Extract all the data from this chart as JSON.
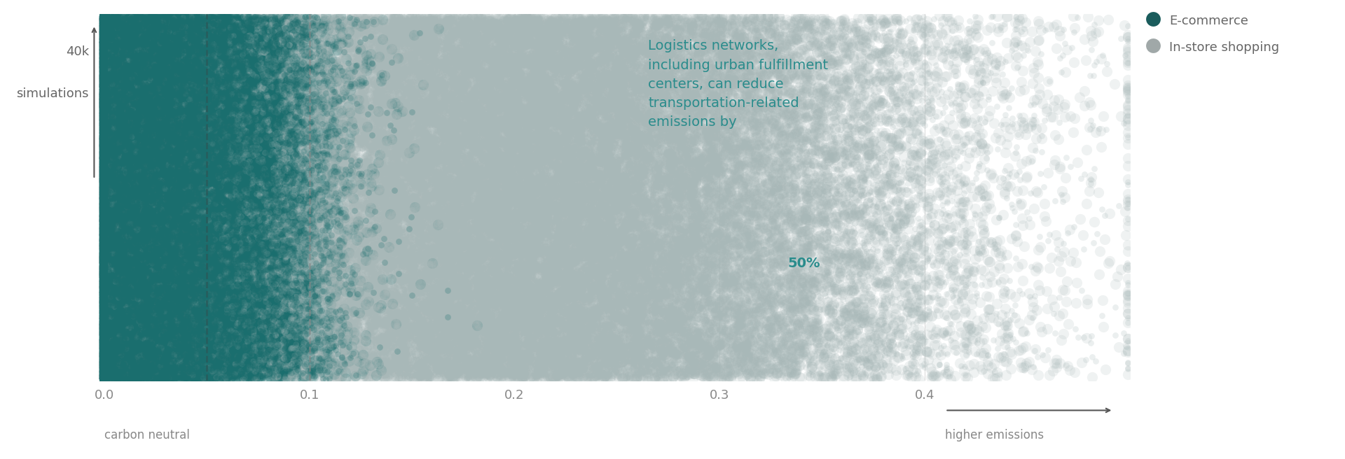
{
  "xlim": [
    -0.005,
    0.5
  ],
  "ylim": [
    0,
    1
  ],
  "xticks": [
    0.0,
    0.1,
    0.2,
    0.3,
    0.4
  ],
  "xtick_labels": [
    "0.0",
    "0.1",
    "0.2",
    "0.3",
    "0.4"
  ],
  "dashed_lines": [
    0.05,
    0.1
  ],
  "ecommerce_color": "#1a6e6e",
  "instore_color": "#a8b8b8",
  "ecommerce_mean": 0.025,
  "ecommerce_std": 0.035,
  "instore_mean": 0.2,
  "instore_std": 0.1,
  "n_points": 40000,
  "annotation_lines_normal": "Logistics networks,\nincluding urban fulfillment\ncenters, can reduce\ntransportation-related\nemissions by ",
  "annotation_bold": "50%",
  "annotation_color": "#2a8c8c",
  "higher_emissions_label": "higher emissions",
  "carbon_neutral_label": "carbon neutral",
  "ylabel_text1": "40k",
  "ylabel_text2": "simulations",
  "legend_ecommerce_label": "E-commerce",
  "legend_instore_label": "In-store shopping",
  "legend_ecommerce_color": "#1a5c5c",
  "legend_instore_color": "#a0a8a8",
  "bg_color": "#ffffff",
  "grid_color": "#d8d8d8",
  "tick_color": "#888888",
  "label_color": "#666666",
  "dashed_color_1": "#2a5a5a",
  "dashed_color_2": "#888888",
  "dot_size_ec": 120,
  "dot_size_is": 120,
  "dot_alpha_ec": 0.18,
  "dot_alpha_is": 0.18
}
